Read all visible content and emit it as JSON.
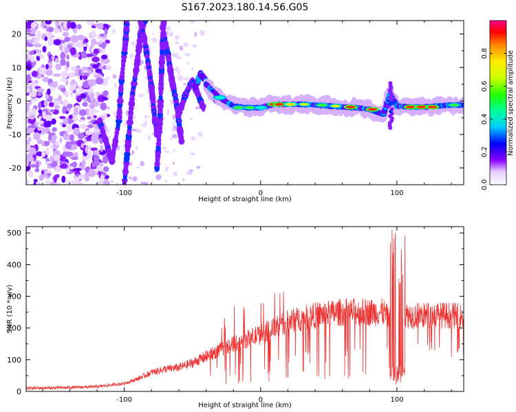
{
  "title": "S167.2023.180.14.56.G05",
  "chart_data": [
    {
      "type": "heatmap",
      "panel": "spectrogram",
      "xlabel": "Height of straight line (km)",
      "ylabel": "Frequency (Hz)",
      "xlim": [
        -172,
        149
      ],
      "ylim": [
        -25,
        24
      ],
      "xticks": [
        -100,
        0,
        100
      ],
      "yticks": [
        -20,
        -10,
        0,
        10,
        20
      ],
      "colorbar": {
        "label": "Normalized spectral amplitude",
        "ticks": [
          0.0,
          0.2,
          0.4,
          0.6,
          0.8
        ],
        "range": [
          0,
          1
        ]
      },
      "ridge": {
        "description_x": [
          -40,
          -30,
          -20,
          -10,
          0,
          10,
          20,
          30,
          40,
          50,
          60,
          70,
          80,
          90,
          95,
          100,
          110,
          120,
          130,
          140,
          149
        ],
        "freq": [
          5,
          1,
          -1.5,
          -2,
          -2,
          -1,
          -1,
          -1,
          -1.2,
          -1.5,
          -1.8,
          -2,
          -2.5,
          -4,
          2,
          -1.5,
          -1.8,
          -1.8,
          -1.5,
          -1.2,
          -1.2
        ]
      }
    },
    {
      "type": "line",
      "panel": "snr",
      "xlabel": "Height of straight line (km)",
      "ylabel": "SNR (10 * v/v)",
      "xlim": [
        -172,
        149
      ],
      "ylim": [
        0,
        520
      ],
      "xticks": [
        -100,
        0,
        100
      ],
      "yticks": [
        0,
        100,
        200,
        300,
        400,
        500
      ],
      "color": "#ee3333",
      "trend": {
        "x": [
          -172,
          -140,
          -120,
          -100,
          -90,
          -80,
          -70,
          -60,
          -50,
          -40,
          -30,
          -20,
          -10,
          0,
          10,
          20,
          30,
          40,
          50,
          60,
          70,
          80,
          90,
          100,
          105,
          110,
          120,
          130,
          140,
          149
        ],
        "y": [
          10,
          12,
          15,
          25,
          40,
          60,
          70,
          75,
          90,
          110,
          130,
          150,
          165,
          180,
          200,
          220,
          230,
          240,
          245,
          250,
          250,
          250,
          250,
          200,
          240,
          240,
          240,
          240,
          240,
          235
        ]
      }
    }
  ]
}
